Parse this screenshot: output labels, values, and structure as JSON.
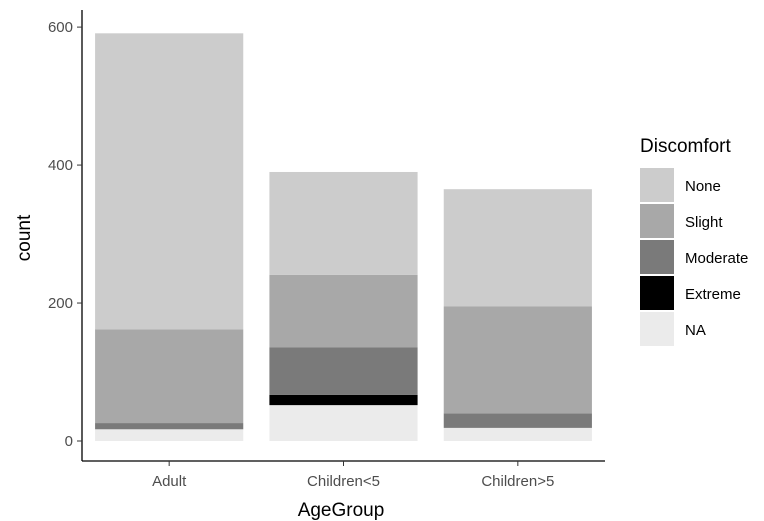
{
  "chart_data": {
    "type": "bar",
    "stacked": true,
    "xlabel": "AgeGroup",
    "ylabel": "count",
    "categories": [
      "Adult",
      "Children<5",
      "Children>5"
    ],
    "ylim": [
      0,
      620
    ],
    "yticks": [
      0,
      200,
      400,
      600
    ],
    "grid": false,
    "legend": {
      "title": "Discomfort",
      "position": "right"
    },
    "series": [
      {
        "name": "NA",
        "color": "#ebebeb",
        "values": [
          17,
          52,
          19
        ]
      },
      {
        "name": "Extreme",
        "color": "#000000",
        "values": [
          0,
          15,
          0
        ]
      },
      {
        "name": "Moderate",
        "color": "#7a7a7a",
        "values": [
          9,
          69,
          21
        ]
      },
      {
        "name": "Slight",
        "color": "#a8a8a8",
        "values": [
          136,
          105,
          155
        ]
      },
      {
        "name": "None",
        "color": "#cccccc",
        "values": [
          429,
          149,
          170
        ]
      }
    ],
    "legend_order": [
      "None",
      "Slight",
      "Moderate",
      "Extreme",
      "NA"
    ]
  }
}
